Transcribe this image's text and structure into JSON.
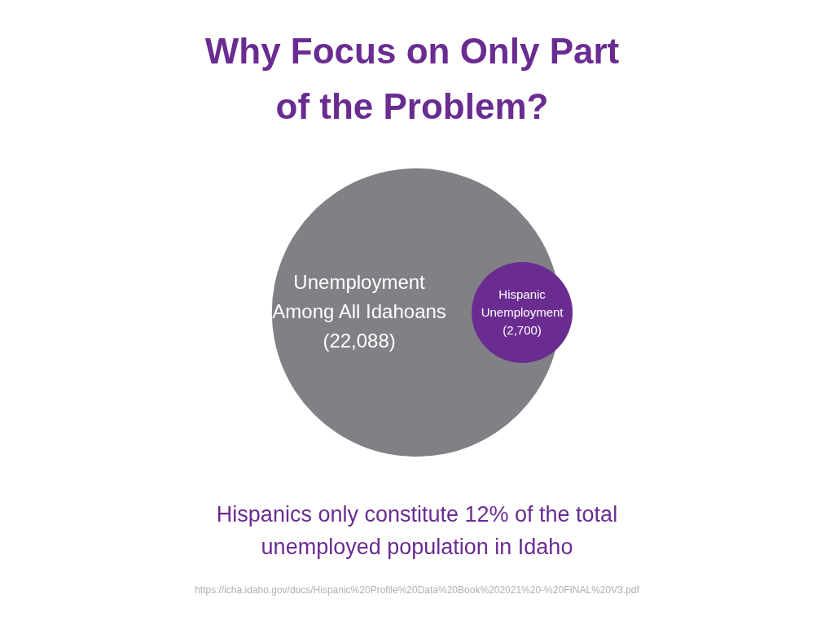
{
  "chart_data": {
    "type": "other",
    "title": "Why Focus on Only Part of the Problem?",
    "categories": [
      "Unemployment Among All Idahoans",
      "Hispanic Unemployment"
    ],
    "values": [
      22088,
      2700
    ],
    "value_labels": [
      "(22,088)",
      "(2,700)"
    ],
    "colors": [
      "#808085",
      "#6a2c91"
    ],
    "annotations": [
      "Hispanics only constitute 12% of the total unemployed population in Idaho",
      "https://icha.idaho.gov/docs/Hispanic%20Profile%20Data%20Book%202021%20-%20FINAL%20V3.pdf"
    ]
  }
}
